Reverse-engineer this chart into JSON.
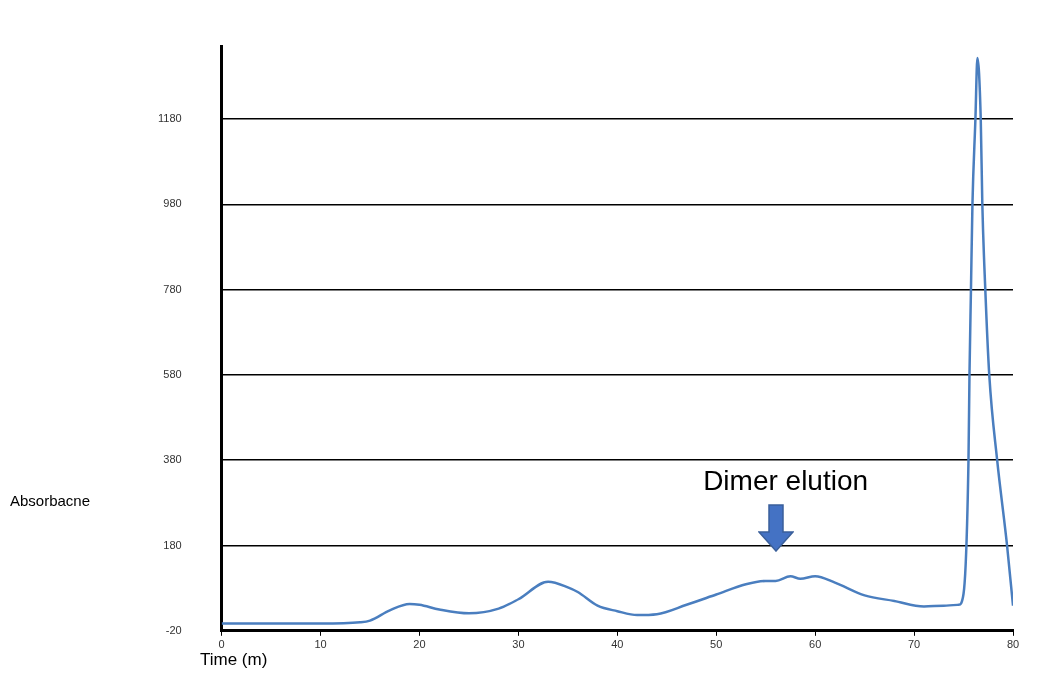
{
  "chart_data": {
    "type": "line",
    "xlabel": "Time (m)",
    "ylabel": "Absorbacne",
    "x": [
      0,
      10,
      14,
      15,
      17,
      19,
      20,
      22,
      25,
      28,
      30,
      33,
      35,
      36,
      38,
      40,
      42,
      44,
      47,
      50,
      53,
      55,
      56,
      57.5,
      58.5,
      60,
      62,
      65,
      68,
      71,
      73,
      74.5,
      75,
      75.5,
      75.6,
      75.75,
      75.9,
      76.2,
      76.4,
      76.74,
      76.9,
      77.2,
      77.6,
      78.4,
      79.4,
      80
    ],
    "series": [
      {
        "color": "#4a7ebf",
        "values": [
          -3,
          -3,
          0,
          4,
          28,
          43,
          41,
          30,
          21,
          32,
          54,
          95,
          82,
          71,
          39,
          26,
          17,
          19,
          41,
          65,
          89,
          97,
          97,
          108,
          102,
          108,
          93,
          63,
          50,
          37,
          39,
          41,
          67,
          380,
          580,
          780,
          980,
          1180,
          1323,
          1180,
          980,
          780,
          580,
          380,
          180,
          39
        ]
      }
    ],
    "xlim": [
      0,
      80
    ],
    "xticks": [
      0,
      10,
      20,
      30,
      40,
      50,
      60,
      70,
      80
    ],
    "ylim": [
      -20,
      1350
    ],
    "yticks": [
      -20,
      180,
      380,
      580,
      780,
      980,
      1180
    ],
    "grid": "y",
    "legend": false,
    "marker": "none",
    "line_style": "solid",
    "annotations": [
      "Dimer elution"
    ]
  }
}
